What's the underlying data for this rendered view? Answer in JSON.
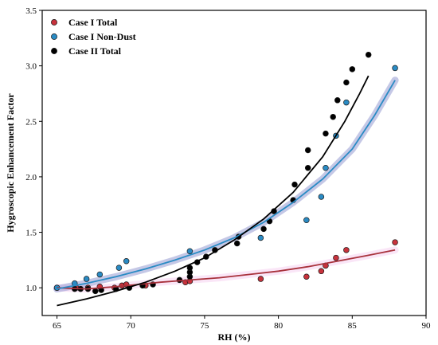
{
  "chart_data": {
    "type": "scatter",
    "xlabel": "RH (%)",
    "ylabel": "Hygroscopic Enhancement Factor",
    "xlim": [
      64,
      90
    ],
    "ylim": [
      0.75,
      3.5
    ],
    "xticks": [
      65,
      70,
      75,
      80,
      85,
      90
    ],
    "yticks": [
      1.0,
      1.5,
      2.0,
      2.5,
      3.0,
      3.5
    ],
    "xtick_labels": [
      "65",
      "70",
      "75",
      "80",
      "85",
      "90"
    ],
    "ytick_labels": [
      "1.0",
      "1.5",
      "2.0",
      "2.5",
      "3.0",
      "3.5"
    ],
    "grid": false,
    "legend_position": "top-left",
    "series": [
      {
        "name": "Case  I Total",
        "color": "#c8323c",
        "band_color": "#f3c8ee",
        "points": [
          [
            65.0,
            1.0
          ],
          [
            66.3,
            1.0
          ],
          [
            67.1,
            1.0
          ],
          [
            67.9,
            1.01
          ],
          [
            68.9,
            1.0
          ],
          [
            69.4,
            1.02
          ],
          [
            69.7,
            1.03
          ],
          [
            71.0,
            1.02
          ],
          [
            73.7,
            1.05
          ],
          [
            74.0,
            1.06
          ],
          [
            78.8,
            1.08
          ],
          [
            81.9,
            1.1
          ],
          [
            82.9,
            1.15
          ],
          [
            83.2,
            1.2
          ],
          [
            83.9,
            1.27
          ],
          [
            84.6,
            1.34
          ],
          [
            87.9,
            1.41
          ]
        ],
        "fit": [
          [
            65.0,
            1.0
          ],
          [
            67.0,
            0.99
          ],
          [
            69.0,
            1.01
          ],
          [
            70.5,
            1.03
          ],
          [
            72.0,
            1.05
          ],
          [
            74.0,
            1.07
          ],
          [
            76.0,
            1.09
          ],
          [
            78.0,
            1.12
          ],
          [
            80.0,
            1.15
          ],
          [
            82.0,
            1.19
          ],
          [
            84.0,
            1.24
          ],
          [
            86.0,
            1.29
          ],
          [
            87.9,
            1.34
          ]
        ]
      },
      {
        "name": "Case  I Non-Dust",
        "color": "#2a8bc4",
        "band_color": "#7e86c8",
        "points": [
          [
            65.0,
            1.0
          ],
          [
            66.2,
            1.04
          ],
          [
            67.0,
            1.08
          ],
          [
            67.9,
            1.12
          ],
          [
            69.2,
            1.18
          ],
          [
            69.7,
            1.24
          ],
          [
            74.0,
            1.33
          ],
          [
            78.8,
            1.45
          ],
          [
            81.9,
            1.61
          ],
          [
            82.9,
            1.82
          ],
          [
            83.2,
            2.08
          ],
          [
            83.9,
            2.37
          ],
          [
            84.6,
            2.67
          ],
          [
            87.9,
            2.98
          ]
        ],
        "fit": [
          [
            65.0,
            0.99
          ],
          [
            67.0,
            1.04
          ],
          [
            69.0,
            1.1
          ],
          [
            71.0,
            1.17
          ],
          [
            73.0,
            1.25
          ],
          [
            75.0,
            1.34
          ],
          [
            77.0,
            1.45
          ],
          [
            79.0,
            1.59
          ],
          [
            81.0,
            1.77
          ],
          [
            83.0,
            1.98
          ],
          [
            85.0,
            2.25
          ],
          [
            86.5,
            2.55
          ],
          [
            87.9,
            2.87
          ]
        ]
      },
      {
        "name": "Case  II Total",
        "color": "#000000",
        "band_color": "",
        "points": [
          [
            66.2,
            0.99
          ],
          [
            66.6,
            0.99
          ],
          [
            67.1,
            0.99
          ],
          [
            67.6,
            0.97
          ],
          [
            68.0,
            0.98
          ],
          [
            69.0,
            0.99
          ],
          [
            69.9,
            1.0
          ],
          [
            70.8,
            1.02
          ],
          [
            71.5,
            1.03
          ],
          [
            73.3,
            1.07
          ],
          [
            74.0,
            1.1
          ],
          [
            74.0,
            1.14
          ],
          [
            74.0,
            1.18
          ],
          [
            74.5,
            1.23
          ],
          [
            75.1,
            1.28
          ],
          [
            75.7,
            1.34
          ],
          [
            77.2,
            1.4
          ],
          [
            77.3,
            1.46
          ],
          [
            79.0,
            1.53
          ],
          [
            79.4,
            1.6
          ],
          [
            79.7,
            1.69
          ],
          [
            81.0,
            1.79
          ],
          [
            81.1,
            1.93
          ],
          [
            82.0,
            2.08
          ],
          [
            82.0,
            2.24
          ],
          [
            83.2,
            2.39
          ],
          [
            83.7,
            2.54
          ],
          [
            84.0,
            2.69
          ],
          [
            84.6,
            2.85
          ],
          [
            85.0,
            2.97
          ],
          [
            86.1,
            3.1
          ]
        ],
        "fit": [
          [
            65.0,
            0.84
          ],
          [
            67.0,
            0.9
          ],
          [
            69.0,
            0.97
          ],
          [
            71.0,
            1.05
          ],
          [
            73.0,
            1.15
          ],
          [
            75.0,
            1.27
          ],
          [
            77.0,
            1.43
          ],
          [
            79.0,
            1.62
          ],
          [
            81.0,
            1.86
          ],
          [
            83.0,
            2.18
          ],
          [
            84.5,
            2.5
          ],
          [
            85.5,
            2.75
          ],
          [
            86.1,
            2.91
          ]
        ]
      }
    ]
  }
}
